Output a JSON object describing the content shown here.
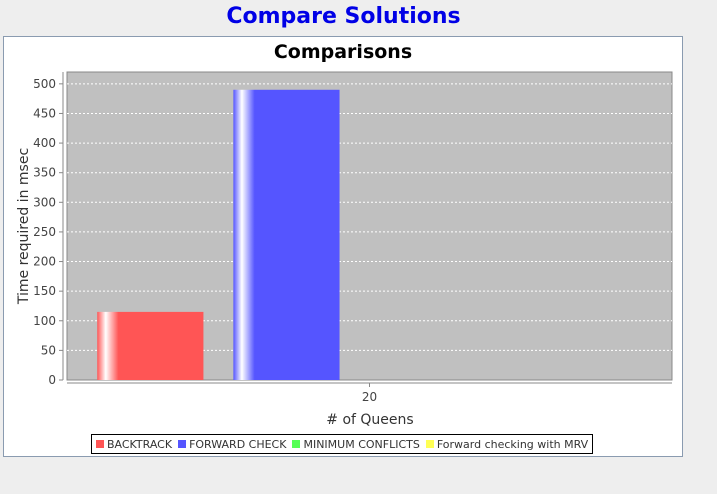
{
  "window": {
    "title": "Compare Solutions"
  },
  "chart_data": {
    "type": "bar",
    "title": "Comparisons",
    "xlabel": "# of Queens",
    "ylabel": "Time required in msec",
    "categories": [
      "20"
    ],
    "ylim": [
      0,
      520
    ],
    "yticks": [
      0,
      50,
      100,
      150,
      200,
      250,
      300,
      350,
      400,
      450,
      500
    ],
    "grid": true,
    "legend_position": "bottom",
    "plot_background": "#c0c0c0",
    "series": [
      {
        "name": "BACKTRACK",
        "values": [
          115
        ],
        "color": "#ff5555"
      },
      {
        "name": "FORWARD CHECK",
        "values": [
          490
        ],
        "color": "#5555ff"
      },
      {
        "name": "MINIMUM CONFLICTS",
        "values": [
          0
        ],
        "color": "#55ff55"
      },
      {
        "name": "Forward checking with MRV",
        "values": [
          0
        ],
        "color": "#ffff55"
      }
    ]
  }
}
